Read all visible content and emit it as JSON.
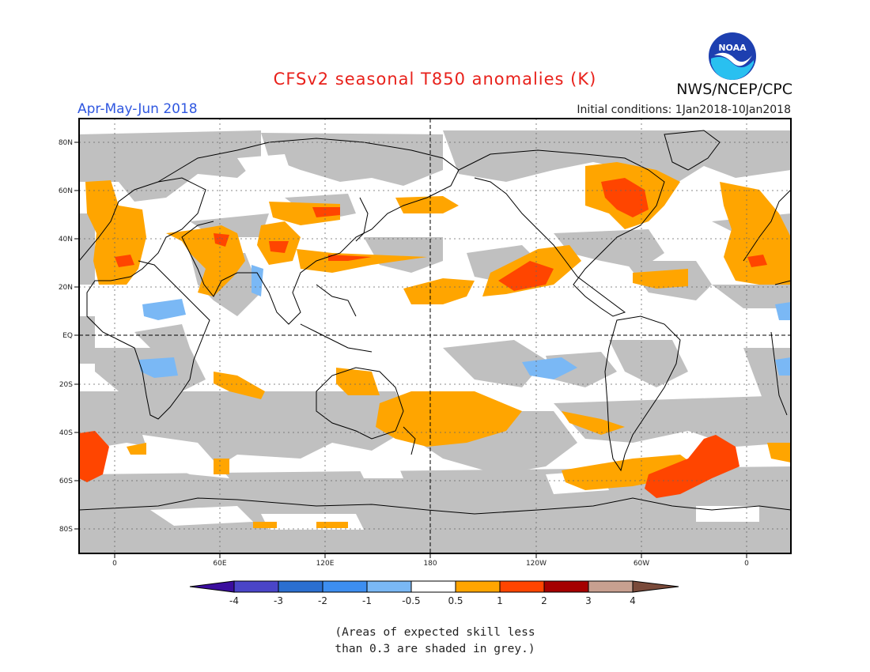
{
  "header": {
    "title": "CFSv2 seasonal T850 anomalies (K)",
    "season": "Apr-May-Jun 2018",
    "initial_conditions": "Initial conditions: 1Jan2018-10Jan2018",
    "organization": "NWS/NCEP/CPC",
    "logo_text": "NOAA"
  },
  "map": {
    "lat_ticks": [
      "80N",
      "60N",
      "40N",
      "20N",
      "EQ",
      "20S",
      "40S",
      "60S",
      "80S"
    ],
    "lon_ticks": [
      "0",
      "60E",
      "120E",
      "180",
      "120W",
      "60W",
      "0"
    ],
    "colors": {
      "skill_mask": "#c0c0c0",
      "warm_05_1": "#ffa500",
      "warm_1_2": "#ff4500",
      "cool_m1_m05": "#7ab8f5",
      "land_outline": "#000000"
    }
  },
  "colorbar": {
    "labels": [
      "-4",
      "-3",
      "-2",
      "-1",
      "-0.5",
      "0.5",
      "1",
      "2",
      "3",
      "4"
    ],
    "colors": [
      "#3b0e9e",
      "#4a45c8",
      "#2b6fd0",
      "#3d8ef0",
      "#7ab8f5",
      "#ffffff",
      "#ffa500",
      "#ff4500",
      "#a50000",
      "#c8a090",
      "#7a4a3a"
    ]
  },
  "note": {
    "line1": "(Areas of expected skill less",
    "line2": "than 0.3 are shaded in grey.)"
  }
}
